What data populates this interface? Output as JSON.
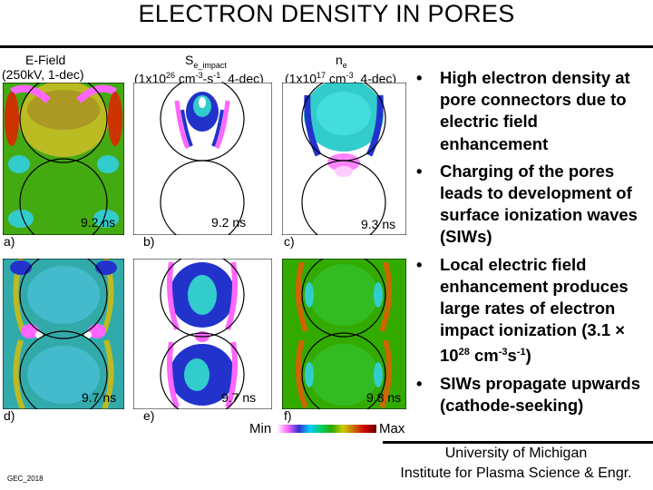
{
  "title": "ELECTRON DENSITY IN PORES",
  "columns": {
    "efield": {
      "name": "E-Field",
      "range": "(250kV, 1-dec)"
    },
    "simpact": {
      "symbol": "S",
      "sub": "e_impact",
      "range_pre": "(1x10",
      "range_exp": "26",
      "range_mid": " cm",
      "range_exp2": "-3",
      "range_mid2": "-s",
      "range_exp3": "-1",
      "range_post": ", 4-dec)"
    },
    "ne": {
      "symbol": "n",
      "sub": "e",
      "range_pre": "(1x10",
      "range_exp": "17",
      "range_mid": " cm",
      "range_exp2": "-3",
      "range_post": ", 4-dec)"
    }
  },
  "panels": [
    {
      "label": "a)",
      "time": "9.2 ns"
    },
    {
      "label": "b)",
      "time": "9.2 ns"
    },
    {
      "label": "c)",
      "time": "9.3 ns"
    },
    {
      "label": "d)",
      "time": "9.7 ns"
    },
    {
      "label": "e)",
      "time": "9.7 ns"
    },
    {
      "label": "f)",
      "time": "9.8 ns"
    }
  ],
  "colorbar": {
    "min": "Min",
    "max": "Max"
  },
  "bullets": [
    "High electron density at pore connectors due to electric field enhancement",
    "Charging of the pores leads to development of surface ionization waves (SIWs)",
    "Local electric field enhancement produces large rates of electron impact ionization (3.1 × 10",
    "SIWs propagate upwards (cathode-seeking)"
  ],
  "bullet3_exp": "28",
  "bullet3_unit": " cm",
  "bullet3_exp2": "-3",
  "bullet3_mid": "s",
  "bullet3_exp3": "-1",
  "bullet3_tail": ")",
  "bullet_marker": "•",
  "footer": {
    "line1": "University of Michigan",
    "line2": "Institute for Plasma Science & Engr."
  },
  "gec_tag": "GEC_2018",
  "colors": {
    "field_green": "#33aa00",
    "field_yellow": "#cccc00",
    "cyan": "#33cccc",
    "blue": "#2233cc",
    "magenta": "#ff66ff"
  }
}
